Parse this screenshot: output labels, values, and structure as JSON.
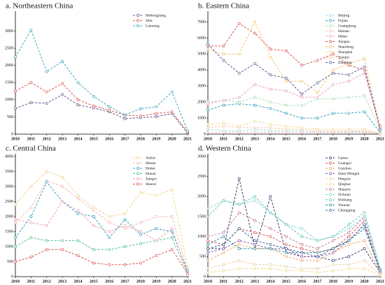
{
  "chart_data": [
    {
      "type": "line",
      "title": "a. Northeastern China",
      "x": [
        2010,
        2011,
        2012,
        2013,
        2014,
        2015,
        2016,
        2017,
        2018,
        2019,
        2020,
        2021
      ],
      "xlim": [
        2010,
        2021
      ],
      "xticks": [
        2010,
        2011,
        2012,
        2013,
        2014,
        2015,
        2016,
        2017,
        2018,
        2019,
        2020,
        2021
      ],
      "ylim": [
        0,
        3500
      ],
      "yticks": [
        0,
        500,
        1000,
        1500,
        2000,
        2500,
        3000
      ],
      "series": [
        {
          "name": "Heilongjiang",
          "color": "#6b4c8a",
          "values": [
            750,
            920,
            900,
            1150,
            850,
            760,
            650,
            450,
            480,
            510,
            600,
            30
          ]
        },
        {
          "name": "Jilin",
          "color": "#d9534f",
          "values": [
            1250,
            1500,
            1230,
            1470,
            1000,
            820,
            700,
            550,
            530,
            600,
            650,
            60
          ]
        },
        {
          "name": "Liaoning",
          "color": "#3aa6b9",
          "values": [
            2250,
            3030,
            1820,
            2120,
            1500,
            1100,
            800,
            560,
            740,
            800,
            1230,
            100
          ]
        }
      ]
    },
    {
      "type": "line",
      "title": "b. Eastern China",
      "x": [
        2010,
        2011,
        2012,
        2013,
        2014,
        2015,
        2016,
        2017,
        2018,
        2019,
        2020,
        2021
      ],
      "xlim": [
        2010,
        2021
      ],
      "xticks": [
        2010,
        2011,
        2012,
        2013,
        2014,
        2015,
        2016,
        2017,
        2018,
        2019,
        2020,
        2021
      ],
      "ylim": [
        0,
        7500
      ],
      "yticks": [
        0,
        1000,
        2000,
        3000,
        4000,
        5000,
        6000,
        7000
      ],
      "series": [
        {
          "name": "Beijing",
          "color": "#9fd8e8",
          "values": [
            300,
            200,
            200,
            300,
            200,
            200,
            200,
            150,
            100,
            150,
            150,
            50
          ]
        },
        {
          "name": "Fujian",
          "color": "#2f9fc0",
          "values": [
            1500,
            1800,
            1900,
            1800,
            1600,
            1300,
            1000,
            1000,
            1300,
            1300,
            1400,
            100
          ]
        },
        {
          "name": "Guangdong",
          "color": "#a8dcb0",
          "values": [
            2000,
            2100,
            2000,
            2300,
            2000,
            1800,
            1800,
            2200,
            2200,
            2300,
            2400,
            300
          ]
        },
        {
          "name": "Hainan",
          "color": "#f2b8c0",
          "values": [
            100,
            100,
            100,
            120,
            100,
            100,
            100,
            100,
            100,
            100,
            100,
            20
          ]
        },
        {
          "name": "Hebei",
          "color": "#e8a0b8",
          "values": [
            1900,
            2100,
            2300,
            3100,
            2800,
            2700,
            2300,
            2300,
            3100,
            3300,
            3800,
            400
          ]
        },
        {
          "name": "Jiangsu",
          "color": "#d9534f",
          "values": [
            5500,
            5500,
            6900,
            6300,
            5300,
            5200,
            4300,
            4600,
            5000,
            4300,
            4000,
            500
          ]
        },
        {
          "name": "Shandong",
          "color": "#f5c06a",
          "values": [
            5300,
            5000,
            5000,
            7000,
            4800,
            3300,
            3300,
            2600,
            4000,
            4400,
            4700,
            400
          ]
        },
        {
          "name": "Shanghai",
          "color": "#f0dc8c",
          "values": [
            600,
            700,
            500,
            800,
            600,
            500,
            400,
            300,
            300,
            300,
            300,
            50
          ]
        },
        {
          "name": "Tianjin",
          "color": "#f8c8a0",
          "values": [
            400,
            500,
            400,
            400,
            400,
            300,
            300,
            200,
            200,
            200,
            200,
            30
          ]
        },
        {
          "name": "Zhejiang",
          "color": "#5a5a9a",
          "values": [
            5600,
            4600,
            3800,
            4400,
            3700,
            3500,
            2500,
            3200,
            3800,
            3700,
            4200,
            300
          ]
        }
      ]
    },
    {
      "type": "line",
      "title": "c. Central China",
      "x": [
        2010,
        2011,
        2012,
        2013,
        2014,
        2015,
        2016,
        2017,
        2018,
        2019,
        2020,
        2021
      ],
      "xlim": [
        2010,
        2021
      ],
      "xticks": [
        2010,
        2011,
        2012,
        2013,
        2014,
        2015,
        2016,
        2017,
        2018,
        2019,
        2020,
        2021
      ],
      "ylim": [
        0,
        4000
      ],
      "yticks": [
        0,
        500,
        1000,
        1500,
        2000,
        2500,
        3000,
        3500,
        4000
      ],
      "series": [
        {
          "name": "Anhui",
          "color": "#f3d48a",
          "values": [
            2400,
            3000,
            3500,
            3300,
            2700,
            2300,
            2000,
            2100,
            2800,
            2700,
            2900,
            300
          ]
        },
        {
          "name": "Henan",
          "color": "#f2b8b0",
          "values": [
            1800,
            2300,
            3200,
            3000,
            2600,
            2200,
            1800,
            1600,
            1800,
            2000,
            2000,
            200
          ]
        },
        {
          "name": "Hubei",
          "color": "#2f9fc0",
          "values": [
            1300,
            2000,
            3150,
            2500,
            2100,
            2000,
            1300,
            1900,
            1400,
            1600,
            1500,
            200
          ]
        },
        {
          "name": "Hunan",
          "color": "#4fbf8f",
          "values": [
            1000,
            1300,
            1200,
            1200,
            1200,
            900,
            900,
            1000,
            1100,
            1200,
            1300,
            100
          ]
        },
        {
          "name": "Jiangxi",
          "color": "#e8a0b8",
          "values": [
            1900,
            1800,
            1700,
            2500,
            2200,
            1700,
            1500,
            1700,
            1500,
            1200,
            1600,
            100
          ]
        },
        {
          "name": "Shanxi",
          "color": "#d9534f",
          "values": [
            500,
            650,
            900,
            900,
            700,
            450,
            400,
            400,
            450,
            700,
            900,
            100
          ]
        }
      ]
    },
    {
      "type": "line",
      "title": "d. Western China",
      "x": [
        2010,
        2011,
        2012,
        2013,
        2014,
        2015,
        2016,
        2017,
        2018,
        2019,
        2020,
        2021
      ],
      "xlim": [
        2010,
        2021
      ],
      "xticks": [
        2010,
        2011,
        2012,
        2013,
        2014,
        2015,
        2016,
        2017,
        2018,
        2019,
        2020,
        2021
      ],
      "ylim": [
        0,
        3000
      ],
      "yticks": [
        0,
        500,
        1000,
        1500,
        2000,
        2500,
        3000
      ],
      "series": [
        {
          "name": "Gansu",
          "color": "#3b3b6b",
          "values": [
            700,
            700,
            2450,
            700,
            2000,
            600,
            500,
            500,
            400,
            500,
            700,
            100
          ]
        },
        {
          "name": "Guangxi",
          "color": "#d9534f",
          "values": [
            900,
            800,
            1200,
            1100,
            1000,
            800,
            700,
            600,
            700,
            1000,
            1400,
            100
          ]
        },
        {
          "name": "Guizhou",
          "color": "#f0a868",
          "values": [
            400,
            600,
            800,
            700,
            700,
            500,
            400,
            400,
            600,
            800,
            900,
            100
          ]
        },
        {
          "name": "Inner Mongol",
          "color": "#8a5a9e",
          "values": [
            600,
            700,
            900,
            800,
            700,
            700,
            500,
            500,
            600,
            900,
            1300,
            100
          ]
        },
        {
          "name": "Ningxia",
          "color": "#e8c9a0",
          "values": [
            200,
            300,
            400,
            300,
            300,
            250,
            200,
            200,
            300,
            300,
            400,
            50
          ]
        },
        {
          "name": "Qinghai",
          "color": "#f3d78a",
          "values": [
            100,
            150,
            200,
            200,
            200,
            150,
            150,
            100,
            150,
            200,
            200,
            30
          ]
        },
        {
          "name": "Shaanxi",
          "color": "#c97a9a",
          "values": [
            1000,
            1100,
            1600,
            1400,
            1200,
            1000,
            800,
            700,
            900,
            1100,
            1500,
            200
          ]
        },
        {
          "name": "Sichuan",
          "color": "#7fd4c4",
          "values": [
            1700,
            1900,
            1800,
            1900,
            1600,
            1300,
            1200,
            900,
            1000,
            1200,
            1500,
            200
          ]
        },
        {
          "name": "Sinkiang",
          "color": "#5bc0be",
          "values": [
            1500,
            1900,
            1800,
            2000,
            1600,
            1300,
            1000,
            900,
            1000,
            1300,
            1600,
            200
          ]
        },
        {
          "name": "Yunnan",
          "color": "#2e8b9a",
          "values": [
            800,
            1000,
            700,
            700,
            700,
            600,
            600,
            600,
            700,
            900,
            1200,
            150
          ]
        },
        {
          "name": "Chongqing",
          "color": "#3a5fa0",
          "values": [
            700,
            800,
            1200,
            900,
            800,
            700,
            600,
            500,
            700,
            900,
            1300,
            150
          ]
        }
      ]
    }
  ]
}
